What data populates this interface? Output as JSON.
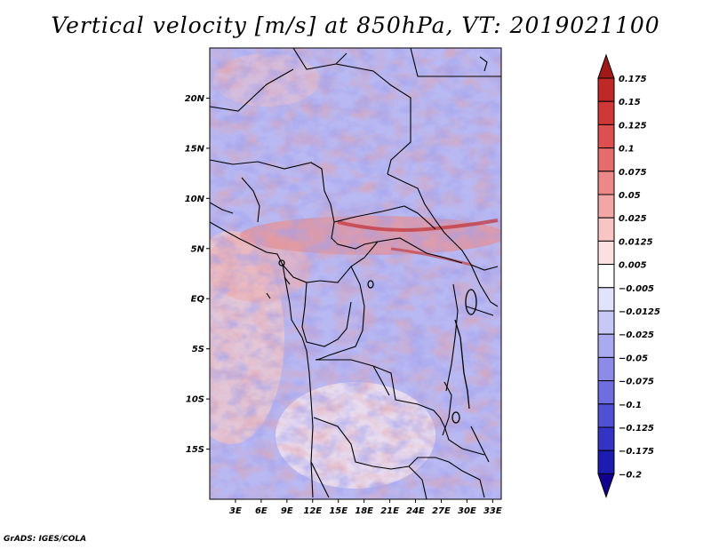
{
  "title": "Vertical velocity [m/s] at 850hPa, VT: 2019021100",
  "credit": "GrADS: IGES/COLA",
  "map": {
    "lat_labels": [
      "20N",
      "15N",
      "10N",
      "5N",
      "EQ",
      "5S",
      "10S",
      "15S"
    ],
    "lat_values": [
      20,
      15,
      10,
      5,
      0,
      -5,
      -10,
      -15
    ],
    "lat_range": [
      -20,
      25
    ],
    "lon_labels": [
      "3E",
      "6E",
      "9E",
      "12E",
      "15E",
      "18E",
      "21E",
      "24E",
      "27E",
      "30E",
      "33E"
    ],
    "lon_values": [
      3,
      6,
      9,
      12,
      15,
      18,
      21,
      24,
      27,
      30,
      33
    ],
    "lon_range": [
      0,
      34
    ]
  },
  "colorbar": {
    "labels": [
      "0.175",
      "0.15",
      "0.125",
      "0.1",
      "0.075",
      "0.05",
      "0.025",
      "0.0125",
      "0.005",
      "−0.005",
      "−0.0125",
      "−0.025",
      "−0.05",
      "−0.075",
      "−0.1",
      "−0.125",
      "−0.175",
      "−0.2"
    ],
    "colors": [
      "#a01818",
      "#c02828",
      "#d03838",
      "#dc5050",
      "#e46c6c",
      "#ec8888",
      "#f2a6a6",
      "#f8c4c4",
      "#fce0e0",
      "#ffffff",
      "#e2e2fc",
      "#c8c8f6",
      "#aaaaf0",
      "#8c8ce8",
      "#6e6ee0",
      "#5050d4",
      "#3434c4",
      "#1c1cb0",
      "#100090"
    ]
  }
}
